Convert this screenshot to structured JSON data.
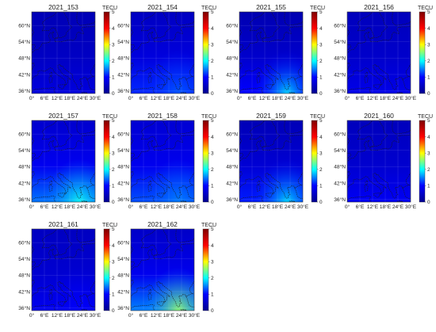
{
  "figure": {
    "unit_label": "TECU",
    "colorbar_ticks": [
      "0",
      "1",
      "2",
      "3",
      "4",
      "5"
    ],
    "colorbar_range": [
      0,
      5
    ],
    "lat_ticks": [
      "60°N",
      "54°N",
      "48°N",
      "42°N",
      "36°N"
    ],
    "lon_ticks": [
      "0°",
      "6°E",
      "12°E",
      "18°E",
      "24°E",
      "30°E"
    ],
    "map_extent": {
      "lon_min": 0,
      "lon_max": 30,
      "lat_min": 35,
      "lat_max": 65
    },
    "colormap": "jet",
    "colormap_stops": [
      "#00008f",
      "#0000ff",
      "#00ffff",
      "#ffff00",
      "#ff0000",
      "#800000"
    ],
    "coastline_color": "#1a1a1a"
  },
  "panels": [
    {
      "title": "2021_153",
      "tec_north": 0.35,
      "tec_south": 0.7,
      "hotspot": 0.0
    },
    {
      "title": "2021_154",
      "tec_north": 0.45,
      "tec_south": 1.15,
      "hotspot": 0.2
    },
    {
      "title": "2021_155",
      "tec_north": 0.3,
      "tec_south": 1.0,
      "hotspot": 0.9
    },
    {
      "title": "2021_156",
      "tec_north": 0.4,
      "tec_south": 0.8,
      "hotspot": 0.0
    },
    {
      "title": "2021_157",
      "tec_north": 0.55,
      "tec_south": 1.45,
      "hotspot": 0.6
    },
    {
      "title": "2021_158",
      "tec_north": 0.6,
      "tec_south": 1.3,
      "hotspot": 0.2
    },
    {
      "title": "2021_159",
      "tec_north": 0.35,
      "tec_south": 1.1,
      "hotspot": 0.8
    },
    {
      "title": "2021_160",
      "tec_north": 0.4,
      "tec_south": 0.9,
      "hotspot": 0.0
    },
    {
      "title": "2021_161",
      "tec_north": 0.45,
      "tec_south": 0.85,
      "hotspot": 0.1
    },
    {
      "title": "2021_162",
      "tec_north": 0.5,
      "tec_south": 1.5,
      "hotspot": 1.1
    }
  ]
}
